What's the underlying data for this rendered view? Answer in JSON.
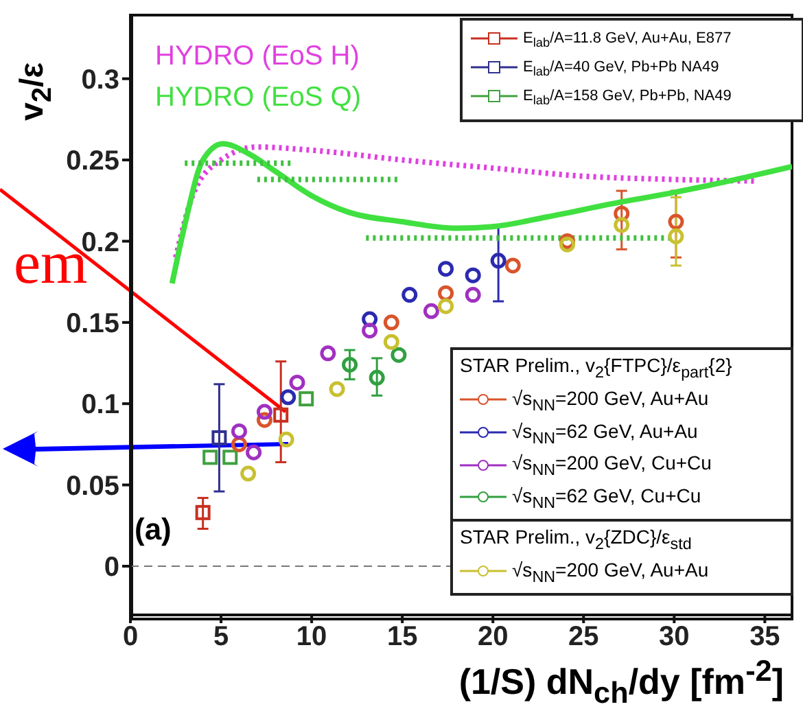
{
  "chart_data": {
    "type": "scatter",
    "xlabel": "(1/S) dN$_{ch}$/dy  [fm$^{-2}$]",
    "ylabel": "v$_{2}$/ε",
    "xlim": [
      0,
      36.5
    ],
    "ylim": [
      -0.03,
      0.34
    ],
    "xticks": [
      0,
      5,
      10,
      15,
      20,
      25,
      30,
      35
    ],
    "yticks": [
      0,
      0.05,
      0.1,
      0.15,
      0.2,
      0.25,
      0.3
    ],
    "legend": "right",
    "legend_title": [
      "STAR Prelim., v$_{2}${FTPC}/ε$_{part}${2}",
      "STAR Prelim., v$_{2}${ZDC}/ε$_{std}$"
    ],
    "annotations": [
      "(a)",
      "em"
    ],
    "ref_lines": [
      {
        "axis": "y",
        "value": 0,
        "color": "#777777",
        "line_style": "dashed"
      }
    ],
    "series": [
      {
        "name": "E$_{lab}$/A=11.8 GeV, Au+Au, E877",
        "color": "#c83020",
        "marker": "square",
        "x": [
          4.0,
          8.3
        ],
        "values": [
          0.033,
          0.093
        ],
        "errors": [
          [
            0.023,
            0.042
          ],
          [
            0.064,
            0.126
          ]
        ]
      },
      {
        "name": "E$_{lab}$/A=40 GeV, Pb+Pb NA49",
        "color": "#303090",
        "marker": "square",
        "x": [
          4.9
        ],
        "values": [
          0.079
        ],
        "errors": [
          [
            0.046,
            0.112
          ]
        ]
      },
      {
        "name": "E$_{lab}$/A=158 GeV, Pb+Pb, NA49",
        "color": "#40a040",
        "marker": "square",
        "x": [
          4.4,
          5.5,
          9.7
        ],
        "values": [
          0.067,
          0.067,
          0.103
        ]
      },
      {
        "name": "√s$_{NN}$=200 GeV, Au+Au",
        "color": "#d9542b",
        "marker": "circle",
        "x": [
          6.0,
          7.4,
          14.4,
          17.4,
          21.1,
          24.1,
          27.1,
          30.1
        ],
        "values": [
          0.075,
          0.09,
          0.15,
          0.168,
          0.185,
          0.2,
          0.217,
          0.212
        ],
        "errors": [
          null,
          null,
          null,
          null,
          null,
          null,
          [
            0.195,
            0.231
          ],
          [
            0.19,
            0.231
          ]
        ]
      },
      {
        "name": "√s$_{NN}$=62 GeV, Au+Au",
        "color": "#2a2ab0",
        "marker": "circle",
        "x": [
          8.7,
          13.2,
          15.4,
          17.4,
          18.9,
          20.3
        ],
        "values": [
          0.104,
          0.152,
          0.167,
          0.183,
          0.179,
          0.188
        ],
        "errors": [
          null,
          null,
          null,
          null,
          null,
          [
            0.163,
            0.21
          ]
        ]
      },
      {
        "name": "√s$_{NN}$=200 GeV, Cu+Cu",
        "color": "#a030c0",
        "marker": "circle",
        "x": [
          6.0,
          6.8,
          7.4,
          9.2,
          10.9,
          13.2,
          16.6,
          18.9
        ],
        "values": [
          0.083,
          0.07,
          0.095,
          0.113,
          0.131,
          0.145,
          0.157,
          0.167
        ]
      },
      {
        "name": "√s$_{NN}$=62 GeV, Cu+Cu",
        "color": "#30a040",
        "marker": "circle",
        "x": [
          12.1,
          13.6,
          14.8
        ],
        "values": [
          0.124,
          0.116,
          0.13
        ],
        "errors": [
          [
            0.115,
            0.133
          ],
          [
            0.105,
            0.128
          ],
          null
        ]
      },
      {
        "name": "√s$_{NN}$=200 GeV, Au+Au",
        "color": "#c8c030",
        "marker": "circle",
        "x": [
          6.5,
          8.6,
          11.4,
          14.4,
          17.4,
          24.1,
          27.1,
          30.1
        ],
        "values": [
          0.057,
          0.078,
          0.109,
          0.138,
          0.16,
          0.198,
          0.21,
          0.203
        ],
        "errors": [
          null,
          null,
          null,
          null,
          null,
          null,
          null,
          [
            0.185,
            0.227
          ]
        ]
      },
      {
        "name": "HYDRO (EoS H)",
        "type": "line",
        "color": "#e040e0",
        "line_style": "dotted",
        "x": [
          2.5,
          3.5,
          5,
          7,
          10,
          15,
          20,
          25,
          30,
          34.6
        ],
        "values": [
          0.19,
          0.23,
          0.25,
          0.258,
          0.256,
          0.25,
          0.245,
          0.24,
          0.238,
          0.237
        ]
      },
      {
        "name": "HYDRO (EoS Q)",
        "type": "line",
        "color": "#40e040",
        "line_style": "solid",
        "x": [
          2.3,
          3,
          4,
          5.1,
          6.5,
          8,
          10,
          12,
          15,
          18,
          20,
          23,
          27,
          30,
          33,
          36.5
        ],
        "values": [
          0.174,
          0.21,
          0.25,
          0.26,
          0.254,
          0.243,
          0.228,
          0.218,
          0.212,
          0.208,
          0.209,
          0.215,
          0.224,
          0.23,
          0.237,
          0.246
        ]
      },
      {
        "type": "line",
        "color": "#40c040",
        "line_style": "dotted",
        "x": [
          3,
          8.9
        ],
        "values": [
          0.248,
          0.248
        ]
      },
      {
        "type": "line",
        "color": "#40c040",
        "line_style": "dotted",
        "x": [
          7,
          14.9
        ],
        "values": [
          0.238,
          0.238
        ]
      },
      {
        "type": "line",
        "color": "#40c040",
        "line_style": "dotted",
        "x": [
          13,
          30
        ],
        "values": [
          0.202,
          0.202
        ]
      }
    ]
  }
}
